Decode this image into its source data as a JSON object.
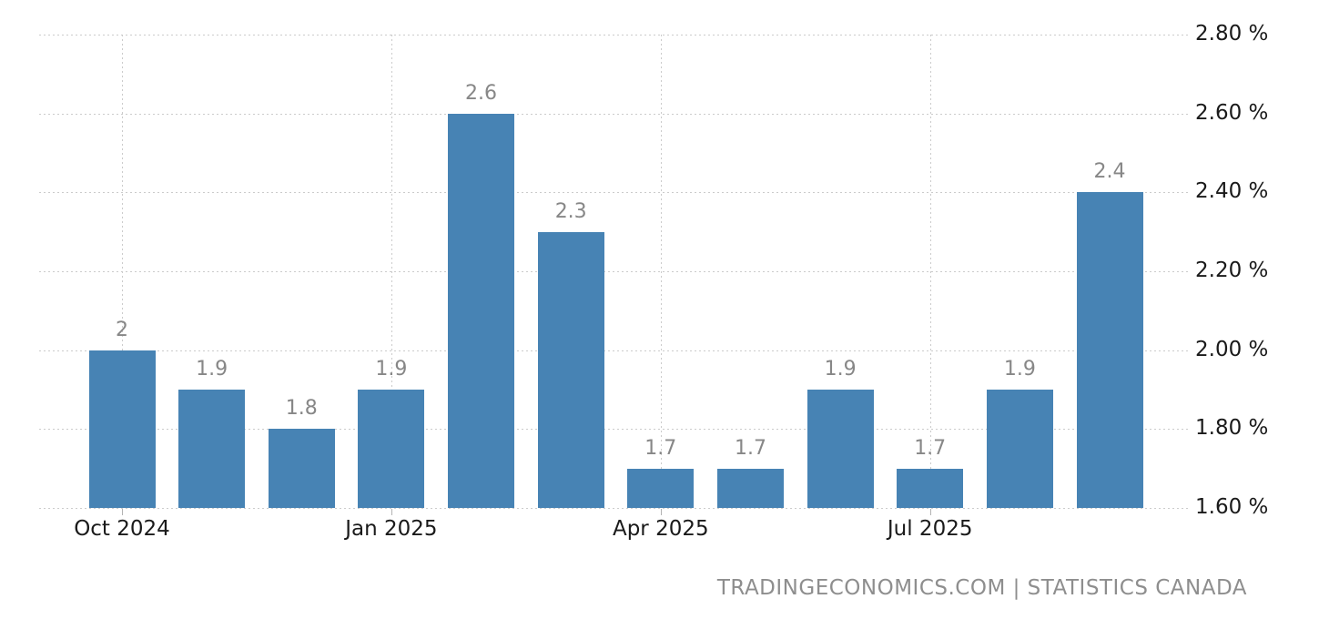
{
  "chart_data": {
    "type": "bar",
    "title": "",
    "xlabel": "",
    "ylabel": "",
    "categories": [
      "Oct 2024",
      "",
      "",
      "Jan 2025",
      "",
      "",
      "Apr 2025",
      "",
      "",
      "Jul 2025",
      "",
      ""
    ],
    "values": [
      2,
      1.9,
      1.8,
      1.9,
      2.6,
      2.3,
      1.7,
      1.7,
      1.9,
      1.7,
      1.9,
      2.4
    ],
    "bar_labels": [
      "2",
      "1.9",
      "1.8",
      "1.9",
      "2.6",
      "2.3",
      "1.7",
      "1.7",
      "1.9",
      "1.7",
      "1.9",
      "2.4"
    ],
    "y_axis": {
      "side": "right",
      "min": 1.6,
      "max": 2.8,
      "ticks": [
        1.6,
        1.8,
        2.0,
        2.2,
        2.4,
        2.6,
        2.8
      ],
      "tick_labels": [
        "1.60 %",
        "1.80 %",
        "2.00 %",
        "2.20 %",
        "2.40 %",
        "2.60 %",
        "2.80 %"
      ]
    },
    "grid": "dotted",
    "legend": "none"
  },
  "colors": {
    "bar": "#4783b4",
    "grid": "#cbcbcb",
    "value_label": "#878787",
    "axis_label": "#1a1a1a",
    "tick_mark": "#b3b3b3",
    "attribution": "#8e8e8e",
    "background": "#ffffff"
  },
  "footer": {
    "attribution": "TRADINGECONOMICS.COM | STATISTICS CANADA"
  }
}
